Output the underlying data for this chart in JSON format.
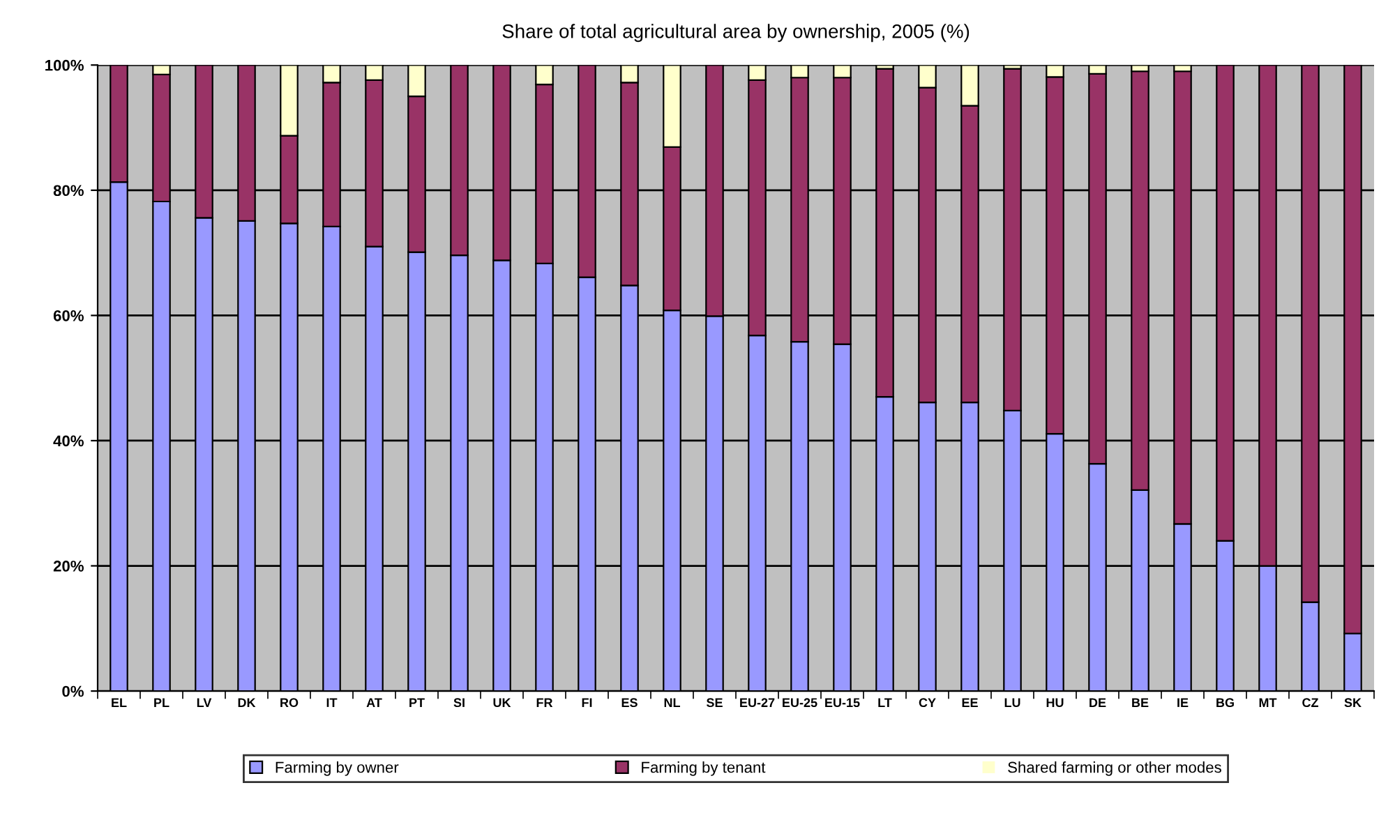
{
  "chart_data": {
    "type": "bar",
    "stacked": true,
    "title": "Share of total agricultural area by ownership, 2005 (%)",
    "categories": [
      "EL",
      "PL",
      "LV",
      "DK",
      "RO",
      "IT",
      "AT",
      "PT",
      "SI",
      "UK",
      "FR",
      "FI",
      "ES",
      "NL",
      "SE",
      "EU-27",
      "EU-25",
      "EU-15",
      "LT",
      "CY",
      "EE",
      "LU",
      "HU",
      "DE",
      "BE",
      "IE",
      "BG",
      "MT",
      "CZ",
      "SK"
    ],
    "series": [
      {
        "name": "Farming by owner",
        "color": "#9999ff",
        "values": [
          81.3,
          78.2,
          75.6,
          75.1,
          74.7,
          74.2,
          71.0,
          70.1,
          69.6,
          68.8,
          68.3,
          66.1,
          64.8,
          60.8,
          59.9,
          56.8,
          55.8,
          55.4,
          47.0,
          46.1,
          46.1,
          44.8,
          41.1,
          36.3,
          32.1,
          26.7,
          24.0,
          20.0,
          14.2,
          9.2
        ]
      },
      {
        "name": "Farming by tenant",
        "color": "#993366",
        "values": [
          18.7,
          20.3,
          24.4,
          24.9,
          14.0,
          23.0,
          26.6,
          24.9,
          30.4,
          31.2,
          28.6,
          33.9,
          32.4,
          26.1,
          40.1,
          40.8,
          42.2,
          42.6,
          52.4,
          50.3,
          47.4,
          54.6,
          57.0,
          62.3,
          66.9,
          72.3,
          76.0,
          80.0,
          85.8,
          90.8
        ]
      },
      {
        "name": "Shared farming or other modes",
        "color": "#ffffcc",
        "values": [
          0,
          1.5,
          0,
          0,
          11.3,
          2.8,
          2.4,
          5.0,
          0,
          0,
          3.1,
          0,
          2.8,
          13.1,
          0,
          2.4,
          2.0,
          2.0,
          0.6,
          3.6,
          6.5,
          0.6,
          1.9,
          1.4,
          1.0,
          1.0,
          0,
          0,
          0,
          0
        ]
      }
    ],
    "ylim": [
      0,
      100
    ],
    "yticks": [
      {
        "value": 0,
        "label": "0%"
      },
      {
        "value": 20,
        "label": "20%"
      },
      {
        "value": 40,
        "label": "40%"
      },
      {
        "value": 60,
        "label": "60%"
      },
      {
        "value": 80,
        "label": "80%"
      },
      {
        "value": 100,
        "label": "100%"
      }
    ],
    "grid": "y",
    "legend": "bottom"
  }
}
